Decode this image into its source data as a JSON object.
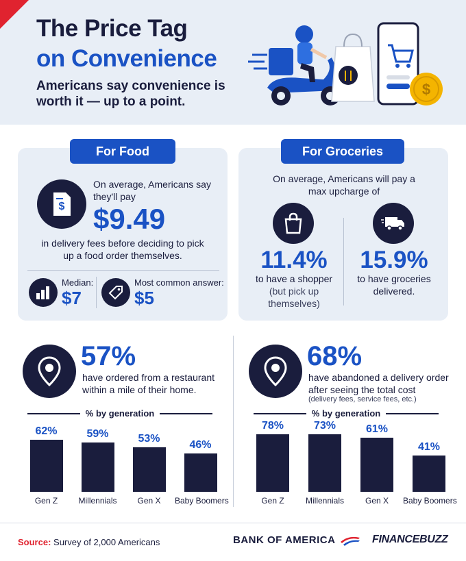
{
  "header": {
    "title_line1": "The Price Tag",
    "title_line2": "on Convenience",
    "subtitle": "Americans say convenience is worth it — up to a point."
  },
  "food": {
    "pill": "For Food",
    "intro": "On average, Americans say they'll pay",
    "amount": "$9.49",
    "outro": "in delivery fees before deciding to pick up a food order themselves.",
    "median_label": "Median:",
    "median_value": "$7",
    "common_label": "Most common answer:",
    "common_value": "$5"
  },
  "groceries": {
    "pill": "For Groceries",
    "intro": "On average, Americans will pay a max upcharge of",
    "shopper_value": "11.4%",
    "shopper_text": "to have a shopper",
    "shopper_note": "(but pick up themselves)",
    "delivered_value": "15.9%",
    "delivered_text": "to have groceries delivered."
  },
  "restaurant_stat": {
    "value": "57%",
    "text": "have ordered from a restaurant within a mile of their home."
  },
  "abandon_stat": {
    "value": "68%",
    "text": "have abandoned a delivery order after seeing the total cost",
    "note": "(delivery fees, service fees, etc.)"
  },
  "footer": {
    "source_label": "Source:",
    "source_text": "Survey of 2,000 Americans",
    "brand1": "BANK OF AMERICA",
    "brand2": "FINANCEBUZZ"
  },
  "colors": {
    "navy": "#1a1d3d",
    "blue": "#1a52c4",
    "red": "#e0232f",
    "panel": "#e8eef6"
  },
  "chart_data": [
    {
      "type": "bar",
      "title": "% by generation",
      "categories": [
        "Gen Z",
        "Millennials",
        "Gen X",
        "Baby Boomers"
      ],
      "values": [
        62,
        59,
        53,
        46
      ],
      "labels": [
        "62%",
        "59%",
        "53%",
        "46%"
      ],
      "ylim": [
        0,
        100
      ]
    },
    {
      "type": "bar",
      "title": "% by generation",
      "categories": [
        "Gen Z",
        "Millennials",
        "Gen X",
        "Baby Boomers"
      ],
      "values": [
        78,
        73,
        61,
        41
      ],
      "labels": [
        "78%",
        "73%",
        "61%",
        "41%"
      ],
      "ylim": [
        0,
        100
      ]
    }
  ]
}
